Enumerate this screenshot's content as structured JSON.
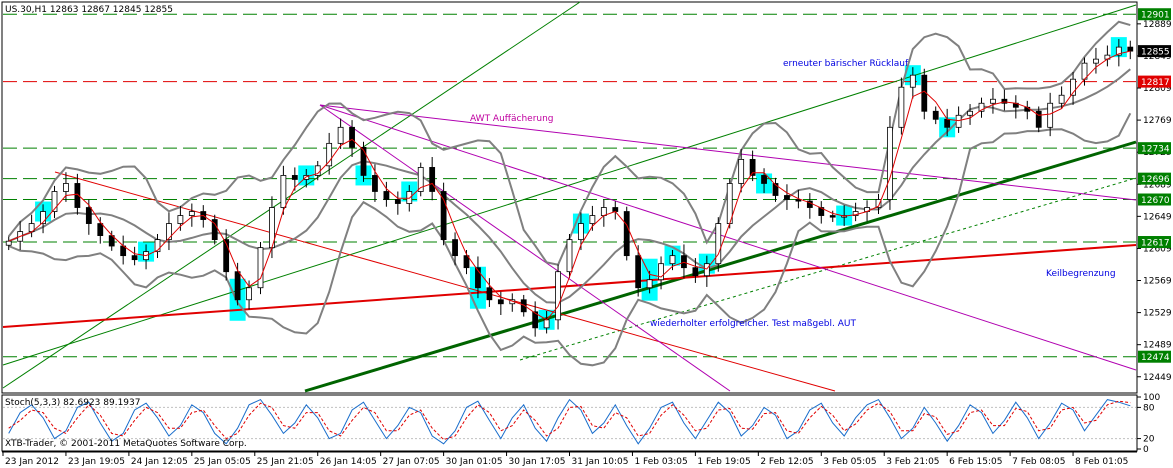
{
  "chart_data": [
    {
      "type": "candlestick",
      "title": "US.30,H1  12863 12867 12845 12855",
      "symbol": "US.30",
      "timeframe": "H1",
      "ohlc_last": {
        "open": 12863,
        "high": 12867,
        "low": 12845,
        "close": 12855
      },
      "ylim": [
        12430,
        12915
      ],
      "y_ticks": [
        12889,
        12849,
        12809,
        12769,
        12729,
        12689,
        12649,
        12609,
        12569,
        12529,
        12489,
        12449
      ],
      "x_ticks": [
        "23 Jan 2012",
        "23 Jan 19:05",
        "24 Jan 12:05",
        "25 Jan 05:05",
        "25 Jan 21:05",
        "26 Jan 14:05",
        "27 Jan 07:05",
        "30 Jan 01:05",
        "30 Jan 17:05",
        "31 Jan 10:05",
        "1 Feb 03:05",
        "1 Feb 19:05",
        "2 Feb 12:05",
        "3 Feb 05:05",
        "3 Feb 21:05",
        "6 Feb 15:05",
        "7 Feb 08:05",
        "8 Feb 01:05"
      ],
      "closes": [
        12618,
        12630,
        12640,
        12655,
        12680,
        12690,
        12660,
        12640,
        12625,
        12612,
        12600,
        12595,
        12605,
        12620,
        12640,
        12650,
        12655,
        12645,
        12620,
        12580,
        12545,
        12560,
        12610,
        12660,
        12700,
        12695,
        12700,
        12712,
        12740,
        12760,
        12735,
        12700,
        12680,
        12670,
        12665,
        12680,
        12710,
        12680,
        12620,
        12600,
        12585,
        12560,
        12545,
        12540,
        12545,
        12530,
        12510,
        12520,
        12580,
        12620,
        12640,
        12650,
        12660,
        12655,
        12600,
        12560,
        12570,
        12590,
        12600,
        12585,
        12575,
        12590,
        12640,
        12690,
        12720,
        12700,
        12690,
        12675,
        12670,
        12668,
        12660,
        12650,
        12648,
        12650,
        12655,
        12660,
        12670,
        12760,
        12810,
        12825,
        12780,
        12770,
        12760,
        12775,
        12780,
        12790,
        12795,
        12790,
        12785,
        12780,
        12760,
        12790,
        12800,
        12820,
        12840,
        12845,
        12850,
        12860,
        12855
      ],
      "horizontal_levels": [
        {
          "value": 12901,
          "label": "12901",
          "color": "#008000",
          "style": "dash"
        },
        {
          "value": 12855,
          "label": "12855",
          "color": "#000000",
          "style": "current"
        },
        {
          "value": 12817,
          "label": "12817",
          "color": "#e00000",
          "style": "dash"
        },
        {
          "value": 12734,
          "label": "12734",
          "color": "#008000",
          "style": "dash"
        },
        {
          "value": 12696,
          "label": "12696",
          "color": "#008000",
          "style": "dash"
        },
        {
          "value": 12670,
          "label": "12670",
          "color": "#008000",
          "style": "dash"
        },
        {
          "value": 12617,
          "label": "12617",
          "color": "#008000",
          "style": "dash"
        },
        {
          "value": 12474,
          "label": "12474",
          "color": "#008000",
          "style": "dash"
        }
      ],
      "annotations": [
        "AWT Auffächerung",
        "erneuter bärischer Rücklauf",
        "Keilbegrenzung",
        "wiederholter erfolgreicher. Test maßgebl. AUT"
      ],
      "colors": {
        "bull": "#008000",
        "bear": "#e00000",
        "bollinger": "#808080",
        "highlight": "#00ffff",
        "fan": "#b000b0",
        "wedge": "#e00000",
        "trend": "#008000",
        "annotation_blue": "#0000e0",
        "annotation_magenta": "#c000a0"
      }
    },
    {
      "type": "line",
      "title": "Stoch(5,3,3) 82.6923 89.1937",
      "indicator": "Stochastic",
      "params": [
        5,
        3,
        3
      ],
      "main_value": 82.6923,
      "signal_value": 89.1937,
      "ylim": [
        0,
        100
      ],
      "y_ticks": [
        100,
        80,
        20,
        0
      ],
      "levels": [
        80,
        20
      ],
      "series": [
        {
          "name": "Main",
          "color": "#1a6ecc",
          "values": [
            30,
            70,
            85,
            60,
            20,
            35,
            80,
            90,
            50,
            15,
            30,
            75,
            88,
            60,
            25,
            45,
            85,
            70,
            30,
            10,
            40,
            85,
            95,
            65,
            30,
            50,
            85,
            60,
            20,
            30,
            75,
            90,
            55,
            20,
            45,
            80,
            70,
            25,
            10,
            35,
            80,
            92,
            55,
            20,
            60,
            85,
            40,
            15,
            60,
            95,
            75,
            30,
            50,
            85,
            45,
            10,
            40,
            80,
            90,
            50,
            20,
            55,
            90,
            70,
            25,
            45,
            80,
            65,
            20,
            35,
            75,
            88,
            50,
            25,
            60,
            85,
            95,
            60,
            20,
            40,
            80,
            50,
            15,
            45,
            85,
            70,
            30,
            55,
            90,
            60,
            20,
            50,
            88,
            75,
            35,
            65,
            95,
            90,
            83
          ]
        },
        {
          "name": "Signal",
          "color": "#e00000",
          "values": [
            40,
            55,
            75,
            70,
            40,
            30,
            60,
            85,
            65,
            30,
            25,
            55,
            80,
            70,
            40,
            40,
            70,
            75,
            45,
            20,
            30,
            65,
            88,
            80,
            45,
            40,
            70,
            70,
            35,
            25,
            55,
            80,
            70,
            35,
            35,
            65,
            75,
            40,
            18,
            25,
            60,
            85,
            70,
            35,
            45,
            75,
            55,
            25,
            40,
            80,
            82,
            45,
            40,
            70,
            60,
            25,
            30,
            65,
            85,
            65,
            35,
            40,
            75,
            78,
            40,
            38,
            68,
            70,
            35,
            30,
            60,
            82,
            65,
            35,
            48,
            75,
            88,
            72,
            35,
            35,
            68,
            62,
            28,
            35,
            70,
            75,
            45,
            45,
            78,
            72,
            35,
            40,
            75,
            80,
            50,
            55,
            85,
            92,
            89
          ]
        }
      ]
    }
  ],
  "footer": {
    "watermark": "XTB-Trader, © 2001-2011 MetaQuotes Software Corp."
  }
}
